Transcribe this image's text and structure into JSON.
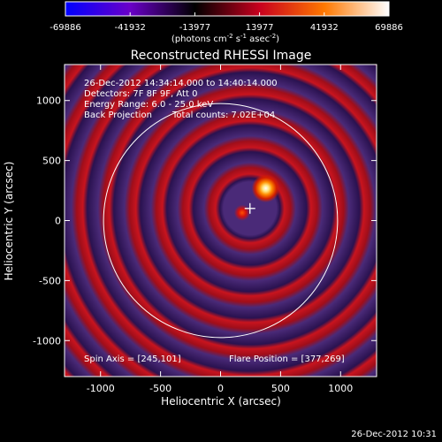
{
  "chart_data": {
    "type": "heatmap",
    "title": "Reconstructed RHESSI Image",
    "xlabel": "Heliocentric X (arcsec)",
    "ylabel": "Heliocentric Y (arcsec)",
    "xlim": [
      -1300,
      1300
    ],
    "ylim": [
      -1300,
      1300
    ],
    "x_ticks": [
      "-1000",
      "-500",
      "0",
      "500",
      "1000"
    ],
    "x_tick_values": [
      -1000,
      -500,
      0,
      500,
      1000
    ],
    "y_ticks": [
      "1000",
      "500",
      "0",
      "-500",
      "-1000"
    ],
    "y_tick_values": [
      1000,
      500,
      0,
      -500,
      -1000
    ],
    "colorbar": {
      "ticks": [
        "-69886",
        "-41932",
        "-13977",
        "13977",
        "41932",
        "69886"
      ],
      "tick_values": [
        -69886,
        -41932,
        -13977,
        13977,
        41932,
        69886
      ],
      "range": [
        -69886,
        69886
      ],
      "unit_main": "(photons cm",
      "unit_sup1": "-2",
      "unit_mid": " s",
      "unit_sup2": "-1",
      "unit_mid2": " asec",
      "unit_sup3": "-2",
      "unit_end": ")",
      "colors": [
        "#0000ff",
        "#6a00c8",
        "#000000",
        "#c8001e",
        "#ff7800",
        "#ffffff"
      ]
    },
    "annotations": {
      "time_range": "26-Dec-2012 14:34:14.000 to 14:40:14.000",
      "detectors": "Detectors: 7F 8F 9F, Att 0",
      "energy": "Energy Range: 6.0 - 25.0 keV",
      "method": "Back Projection",
      "counts": "Total counts: 7.02E+04",
      "spin_axis": "Spin Axis = [245,101]",
      "flare_position": "Flare Position = [377,269]"
    },
    "spin_axis": [
      245,
      101
    ],
    "flare_position": [
      377,
      269
    ],
    "sun_circle_radius": 975,
    "peak": {
      "x": 377,
      "y": 269,
      "value": 69886
    },
    "secondary_source": {
      "x": 180,
      "y": 65
    },
    "grid": false,
    "timestamp": "26-Dec-2012 10:31"
  }
}
